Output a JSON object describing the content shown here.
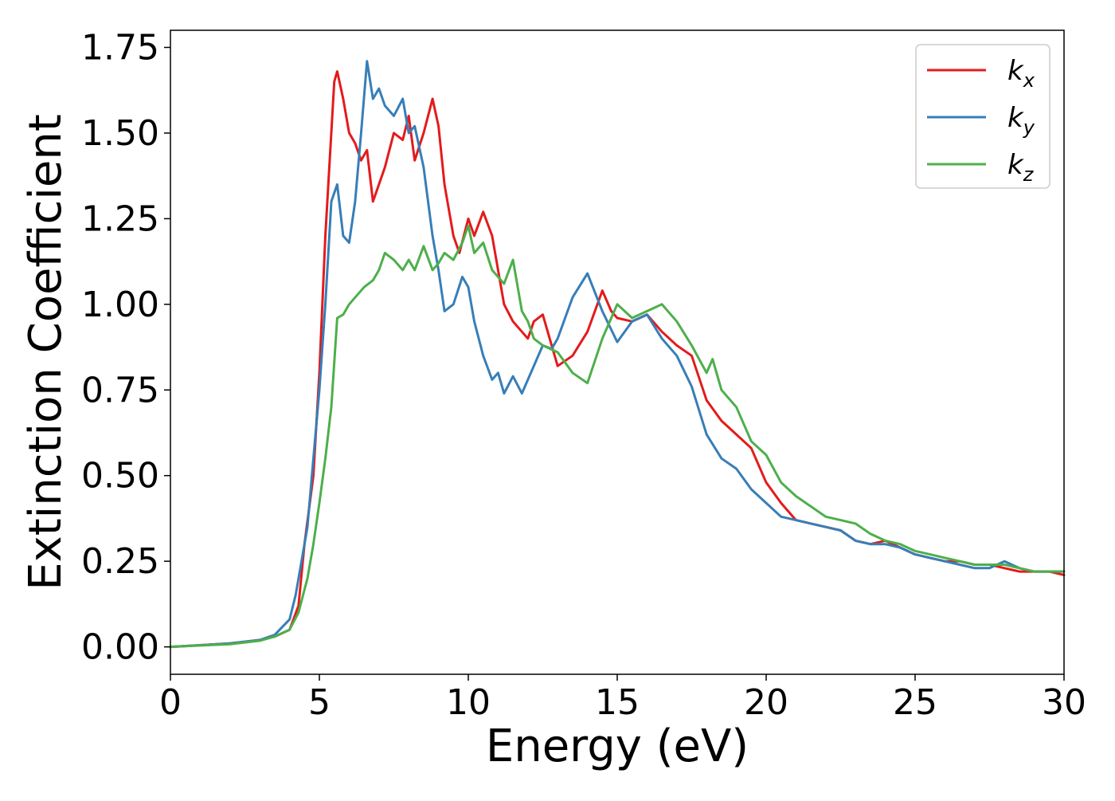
{
  "chart_data": {
    "type": "line",
    "title": "",
    "xlabel": "Energy (eV)",
    "ylabel": "Extinction Coefficient",
    "xlim": [
      0,
      30
    ],
    "ylim": [
      -0.08,
      1.8
    ],
    "xticks": [
      "0",
      "5",
      "10",
      "15",
      "20",
      "25",
      "30"
    ],
    "yticks": [
      "0.00",
      "0.25",
      "0.50",
      "0.75",
      "1.00",
      "1.25",
      "1.50",
      "1.75"
    ],
    "grid": false,
    "legend_position": "top-right",
    "series": [
      {
        "name": "kx",
        "label_base": "k",
        "label_sub": "x",
        "color": "#e41a1c",
        "x": [
          0,
          1,
          2,
          3,
          3.5,
          4,
          4.3,
          4.5,
          4.8,
          5,
          5.2,
          5.5,
          5.6,
          5.8,
          6,
          6.2,
          6.4,
          6.6,
          6.8,
          7,
          7.2,
          7.5,
          7.8,
          8,
          8.2,
          8.5,
          8.8,
          9,
          9.2,
          9.5,
          9.7,
          10,
          10.2,
          10.5,
          10.8,
          11,
          11.2,
          11.5,
          11.8,
          12,
          12.2,
          12.5,
          12.8,
          13,
          13.5,
          14,
          14.5,
          14.8,
          15,
          15.5,
          16,
          16.5,
          17,
          17.5,
          18,
          18.5,
          19,
          19.5,
          20,
          20.5,
          21,
          21.5,
          22,
          22.5,
          23,
          23.5,
          24,
          24.5,
          25,
          25.5,
          26,
          26.5,
          27,
          27.5,
          28,
          28.5,
          29,
          29.5,
          30
        ],
        "y": [
          0,
          0.005,
          0.01,
          0.02,
          0.03,
          0.05,
          0.12,
          0.3,
          0.5,
          0.8,
          1.2,
          1.65,
          1.68,
          1.6,
          1.5,
          1.47,
          1.42,
          1.45,
          1.3,
          1.35,
          1.4,
          1.5,
          1.48,
          1.55,
          1.42,
          1.5,
          1.6,
          1.52,
          1.35,
          1.2,
          1.15,
          1.25,
          1.2,
          1.27,
          1.2,
          1.1,
          1.0,
          0.95,
          0.92,
          0.9,
          0.95,
          0.97,
          0.88,
          0.82,
          0.85,
          0.92,
          1.04,
          0.98,
          0.96,
          0.95,
          0.97,
          0.92,
          0.88,
          0.85,
          0.72,
          0.66,
          0.62,
          0.58,
          0.48,
          0.42,
          0.37,
          0.36,
          0.35,
          0.34,
          0.31,
          0.3,
          0.31,
          0.29,
          0.27,
          0.26,
          0.25,
          0.25,
          0.24,
          0.24,
          0.23,
          0.22,
          0.22,
          0.22,
          0.21
        ]
      },
      {
        "name": "ky",
        "label_base": "k",
        "label_sub": "y",
        "color": "#377eb8",
        "x": [
          0,
          1,
          2,
          3,
          3.5,
          4,
          4.2,
          4.4,
          4.6,
          4.8,
          5,
          5.2,
          5.4,
          5.6,
          5.8,
          6,
          6.2,
          6.4,
          6.6,
          6.8,
          7,
          7.2,
          7.5,
          7.8,
          8,
          8.2,
          8.5,
          8.8,
          9,
          9.2,
          9.5,
          9.8,
          10,
          10.2,
          10.5,
          10.8,
          11,
          11.2,
          11.5,
          11.8,
          12,
          12.2,
          12.5,
          12.8,
          13,
          13.5,
          14,
          14.5,
          15,
          15.5,
          16,
          16.5,
          17,
          17.5,
          18,
          18.5,
          19,
          19.5,
          20,
          20.5,
          21,
          21.5,
          22,
          22.5,
          23,
          23.5,
          24,
          24.5,
          25,
          25.5,
          26,
          26.5,
          27,
          27.5,
          28,
          28.5,
          29,
          29.5,
          30
        ],
        "y": [
          0,
          0.005,
          0.01,
          0.02,
          0.035,
          0.08,
          0.15,
          0.25,
          0.35,
          0.55,
          0.75,
          1.0,
          1.3,
          1.35,
          1.2,
          1.18,
          1.3,
          1.5,
          1.71,
          1.6,
          1.63,
          1.58,
          1.55,
          1.6,
          1.5,
          1.52,
          1.4,
          1.2,
          1.1,
          0.98,
          1.0,
          1.08,
          1.05,
          0.95,
          0.85,
          0.78,
          0.8,
          0.74,
          0.79,
          0.74,
          0.78,
          0.82,
          0.88,
          0.87,
          0.9,
          1.02,
          1.09,
          0.98,
          0.89,
          0.95,
          0.97,
          0.9,
          0.85,
          0.76,
          0.62,
          0.55,
          0.52,
          0.46,
          0.42,
          0.38,
          0.37,
          0.36,
          0.35,
          0.34,
          0.31,
          0.3,
          0.3,
          0.29,
          0.27,
          0.26,
          0.25,
          0.24,
          0.23,
          0.23,
          0.25,
          0.23,
          0.22,
          0.22,
          0.22
        ]
      },
      {
        "name": "kz",
        "label_base": "k",
        "label_sub": "z",
        "color": "#4daf4a",
        "x": [
          0,
          1,
          2,
          3,
          3.5,
          4,
          4.3,
          4.6,
          4.8,
          5,
          5.2,
          5.4,
          5.6,
          5.8,
          6,
          6.2,
          6.5,
          6.8,
          7,
          7.2,
          7.5,
          7.8,
          8,
          8.2,
          8.5,
          8.8,
          9,
          9.2,
          9.5,
          9.8,
          10,
          10.2,
          10.5,
          10.8,
          11,
          11.2,
          11.5,
          11.8,
          12,
          12.2,
          12.5,
          13,
          13.5,
          14,
          14.5,
          15,
          15.5,
          16,
          16.5,
          17,
          17.5,
          18,
          18.2,
          18.5,
          19,
          19.5,
          20,
          20.5,
          21,
          21.5,
          22,
          22.5,
          23,
          23.5,
          24,
          24.5,
          25,
          25.5,
          26,
          26.5,
          27,
          27.5,
          28,
          28.5,
          29,
          29.5,
          30
        ],
        "y": [
          0,
          0.004,
          0.008,
          0.018,
          0.03,
          0.05,
          0.1,
          0.2,
          0.3,
          0.42,
          0.55,
          0.7,
          0.96,
          0.97,
          1.0,
          1.02,
          1.05,
          1.07,
          1.1,
          1.15,
          1.13,
          1.1,
          1.13,
          1.1,
          1.17,
          1.1,
          1.12,
          1.15,
          1.13,
          1.18,
          1.23,
          1.15,
          1.18,
          1.1,
          1.08,
          1.06,
          1.13,
          0.98,
          0.95,
          0.9,
          0.88,
          0.86,
          0.8,
          0.77,
          0.9,
          1.0,
          0.96,
          0.98,
          1.0,
          0.95,
          0.88,
          0.8,
          0.84,
          0.75,
          0.7,
          0.6,
          0.56,
          0.48,
          0.44,
          0.41,
          0.38,
          0.37,
          0.36,
          0.33,
          0.31,
          0.3,
          0.28,
          0.27,
          0.26,
          0.25,
          0.24,
          0.24,
          0.24,
          0.23,
          0.22,
          0.22,
          0.22
        ]
      }
    ]
  }
}
